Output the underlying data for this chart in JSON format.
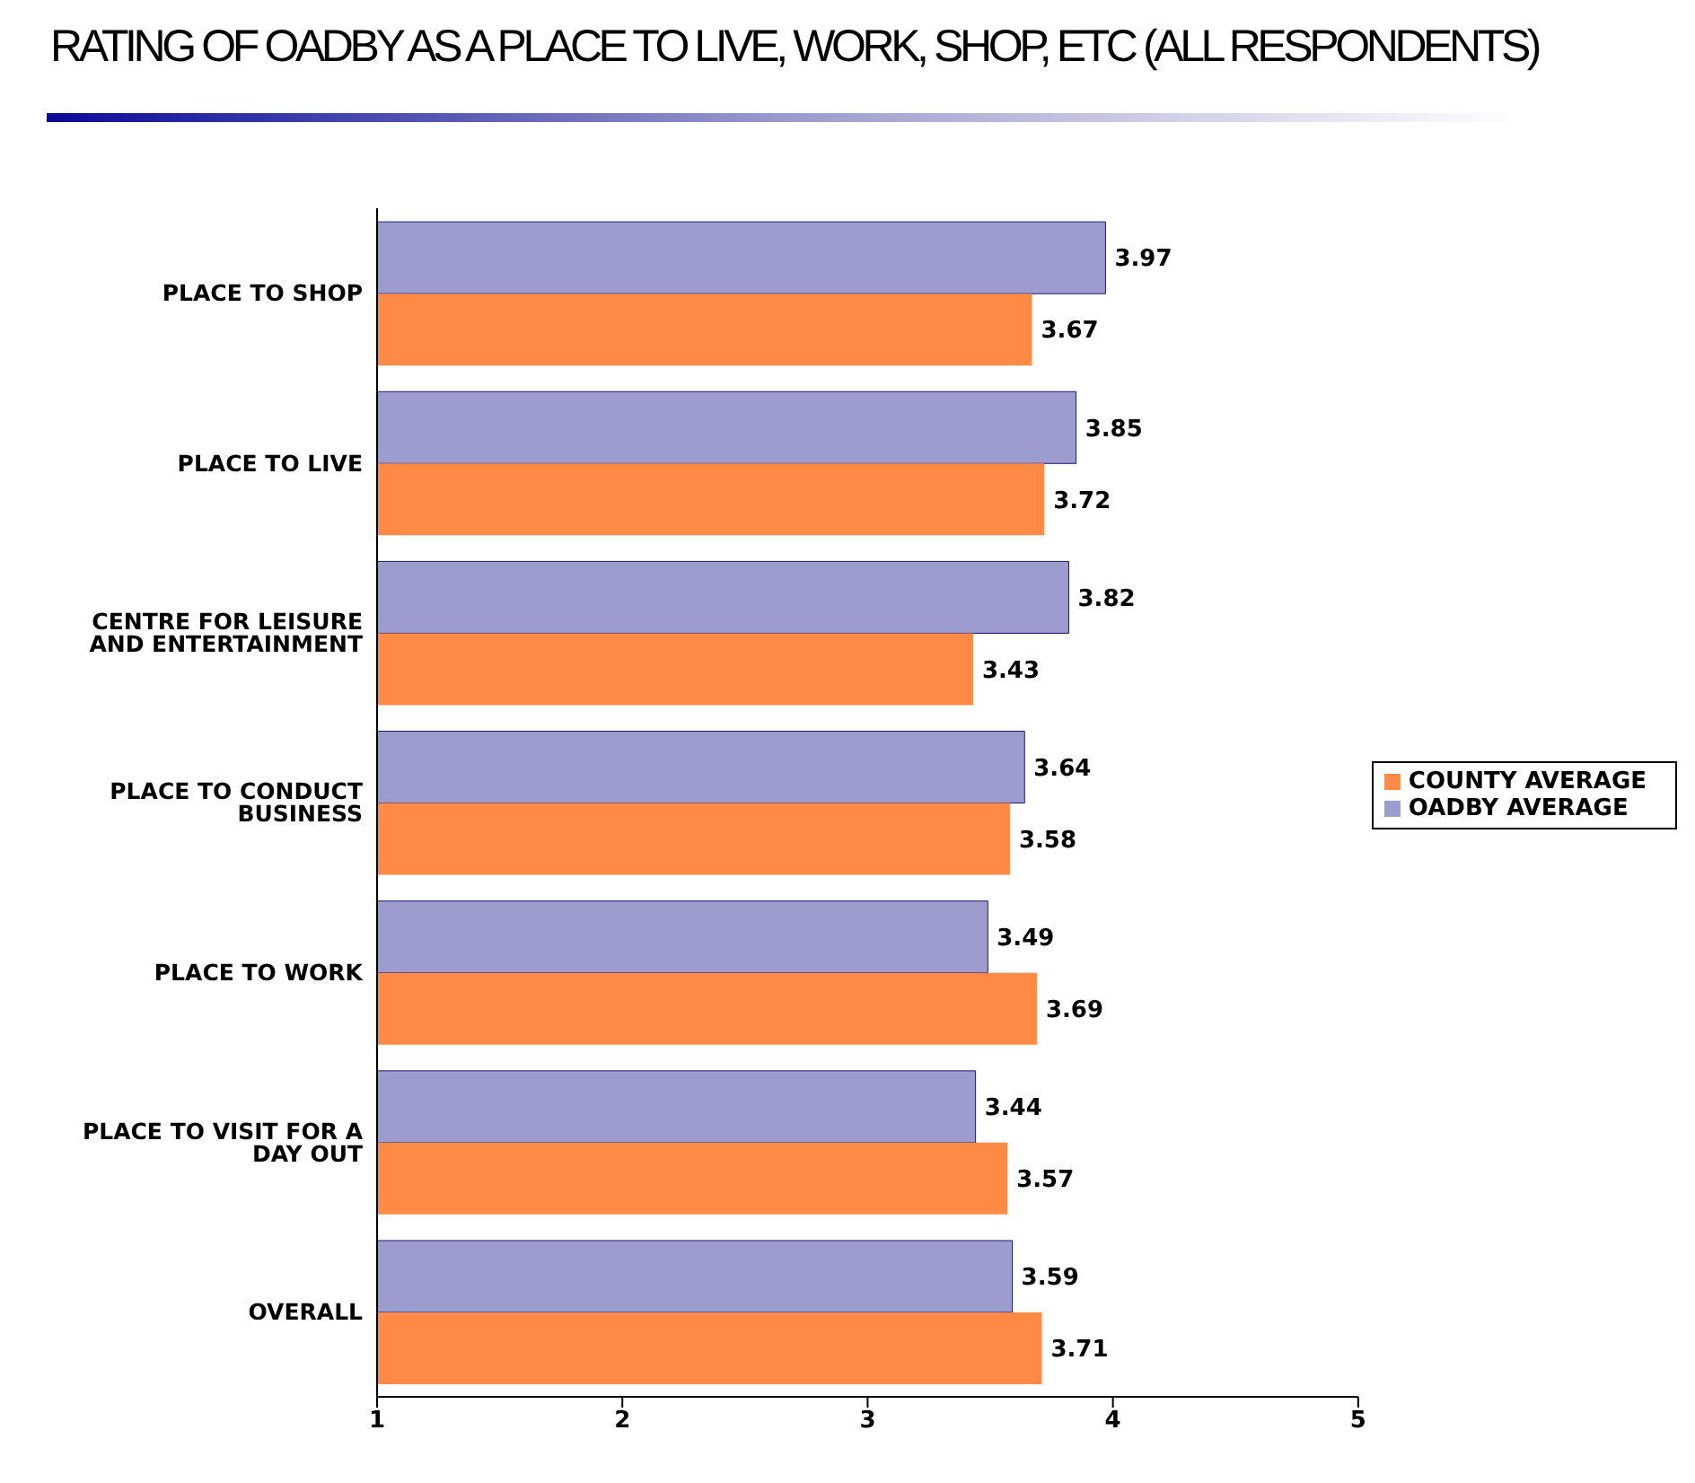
{
  "chart_data": {
    "type": "bar",
    "orientation": "horizontal",
    "title": "RATING OF OADBY AS A PLACE TO LIVE, WORK, SHOP, ETC (ALL RESPONDENTS)",
    "categories": [
      "PLACE TO SHOP",
      "PLACE TO LIVE",
      "CENTRE FOR LEISURE AND ENTERTAINMENT",
      "PLACE TO CONDUCT BUSINESS",
      "PLACE TO WORK",
      "PLACE TO VISIT FOR A DAY OUT",
      "OVERALL"
    ],
    "series": [
      {
        "name": "OADBY AVERAGE",
        "color": "#9c9ccf",
        "values": [
          3.97,
          3.85,
          3.82,
          3.64,
          3.49,
          3.44,
          3.59
        ]
      },
      {
        "name": "COUNTY AVERAGE",
        "color": "#ff8a45",
        "values": [
          3.67,
          3.72,
          3.43,
          3.58,
          3.69,
          3.57,
          3.71
        ]
      }
    ],
    "xlim": [
      1,
      5
    ],
    "xticks": [
      1,
      2,
      3,
      4,
      5
    ],
    "data_labels": true,
    "legend": "right",
    "grid": false
  }
}
